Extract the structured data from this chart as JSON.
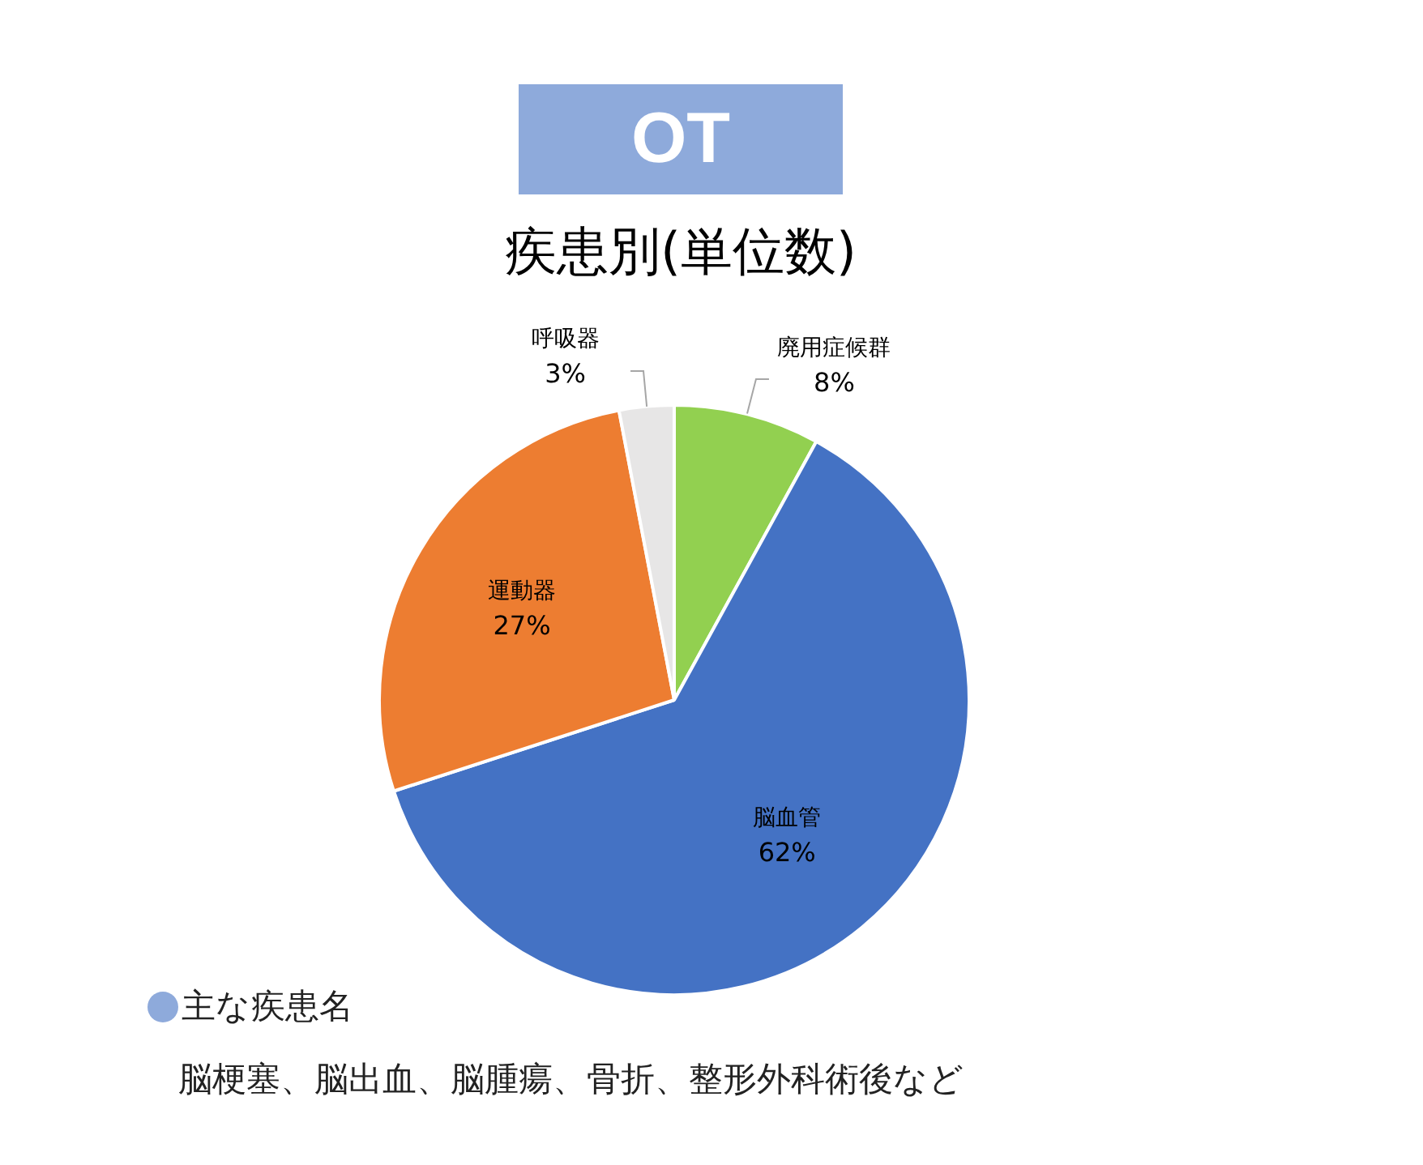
{
  "chart_data": {
    "type": "pie",
    "title": "OT",
    "subtitle": "疾患別(単位数)",
    "categories": [
      "廃用症候群",
      "脳血管",
      "運動器",
      "呼吸器"
    ],
    "values": [
      8,
      62,
      27,
      3
    ],
    "colors": [
      "#92d050",
      "#4472c4",
      "#ed7d31",
      "#e7e6e6"
    ],
    "value_labels": [
      "8%",
      "62%",
      "27%",
      "3%"
    ],
    "legend": false,
    "annotations": [
      "主な疾患名",
      "脳梗塞、脳出血、脳腫瘍、骨折、整形外科術後など"
    ]
  }
}
